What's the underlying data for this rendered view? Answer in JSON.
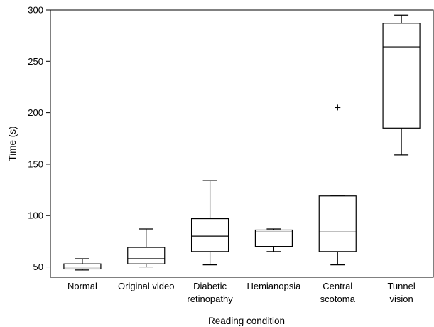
{
  "chart_data": {
    "type": "box",
    "title": "",
    "xlabel": "Reading condition",
    "ylabel": "Time (s)",
    "ylim": [
      40,
      300
    ],
    "yticks": [
      50,
      100,
      150,
      200,
      250,
      300
    ],
    "grid": false,
    "categories": [
      [
        "Normal"
      ],
      [
        "Original video"
      ],
      [
        "Diabetic",
        "retinopathy"
      ],
      [
        "Hemianopsia"
      ],
      [
        "Central",
        "scotoma"
      ],
      [
        "Tunnel",
        "vision"
      ]
    ],
    "boxes": [
      {
        "min": 47,
        "q1": 48,
        "median": 50,
        "q3": 53,
        "max": 58,
        "outliers": []
      },
      {
        "min": 50,
        "q1": 53,
        "median": 58,
        "q3": 69,
        "max": 87,
        "outliers": []
      },
      {
        "min": 52,
        "q1": 65,
        "median": 80,
        "q3": 97,
        "max": 134,
        "outliers": []
      },
      {
        "min": 65,
        "q1": 70,
        "median": 84,
        "q3": 86,
        "max": 87,
        "outliers": []
      },
      {
        "min": 52,
        "q1": 65,
        "median": 84,
        "q3": 119,
        "max": 119,
        "outliers": [
          205
        ]
      },
      {
        "min": 159,
        "q1": 185,
        "median": 264,
        "q3": 287,
        "max": 295,
        "outliers": []
      }
    ]
  }
}
